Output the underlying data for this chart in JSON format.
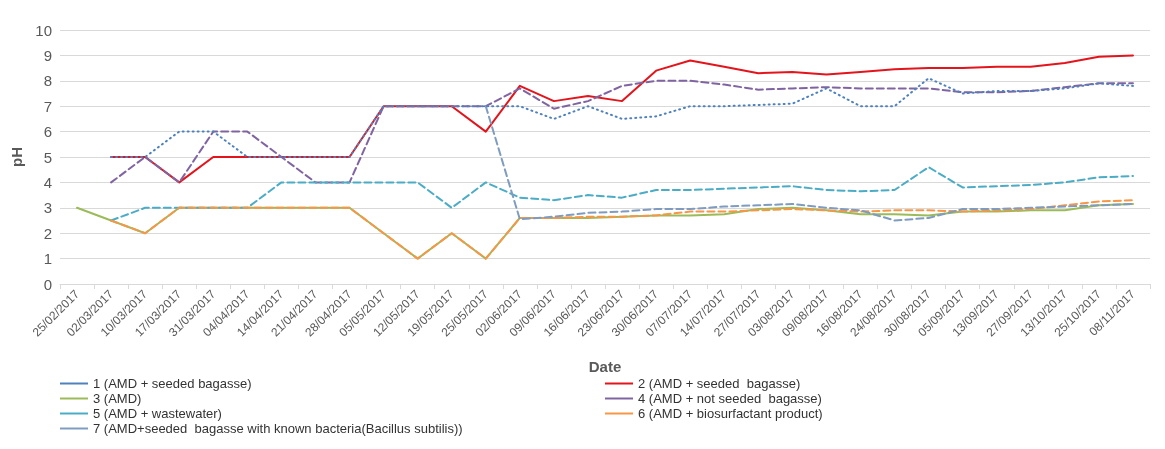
{
  "chart_data": {
    "type": "line",
    "xlabel": "Date",
    "ylabel": "pH",
    "categories": [
      "25/02/2017",
      "02/03/2017",
      "10/03/2017",
      "17/03/2017",
      "31/03/2017",
      "04/04/2017",
      "14/04/2017",
      "21/04/2017",
      "28/04/2017",
      "05/05/2017",
      "12/05/2017",
      "19/05/2017",
      "25/05/2017",
      "02/06/2017",
      "09/06/2017",
      "16/06/2017",
      "23/06/2017",
      "30/06/2017",
      "07/07/2017",
      "14/07/2017",
      "27/07/2017",
      "03/08/2017",
      "09/08/2017",
      "16/08/2017",
      "24/08/2017",
      "30/08/2017",
      "05/09/2017",
      "13/09/2017",
      "27/09/2017",
      "13/10/2017",
      "25/10/2017",
      "08/11/2017"
    ],
    "series": [
      {
        "name": "1 (AMD + seeded bagasse)",
        "color": "#4f81bd",
        "line_style": "dotted",
        "values": [
          null,
          5,
          5,
          6,
          6,
          5,
          5,
          5,
          5,
          7,
          7,
          7,
          7,
          7,
          6.5,
          7,
          6.5,
          6.6,
          7,
          7,
          7.05,
          7.1,
          7.7,
          7,
          7,
          8.1,
          7.5,
          7.6,
          7.6,
          7.7,
          7.9,
          7.8
        ]
      },
      {
        "name": "2 (AMD + seeded  bagasse)",
        "color": "#e3141b",
        "line_style": "solid",
        "values": [
          null,
          5,
          5,
          4,
          5,
          5,
          5,
          5,
          5,
          7,
          7,
          7,
          6,
          7.8,
          7.2,
          7.4,
          7.2,
          8.4,
          8.8,
          8.55,
          8.3,
          8.35,
          8.25,
          8.35,
          8.45,
          8.5,
          8.5,
          8.55,
          8.55,
          8.7,
          8.95,
          9
        ]
      },
      {
        "name": "3 (AMD)",
        "color": "#9bbb59",
        "line_style": "solid",
        "values": [
          3,
          2.5,
          2,
          3,
          3,
          3,
          3,
          3,
          3,
          2,
          1,
          2,
          1,
          2.6,
          2.6,
          2.6,
          2.65,
          2.7,
          2.7,
          2.75,
          2.95,
          3,
          2.9,
          2.75,
          2.75,
          2.7,
          2.85,
          2.85,
          2.9,
          2.9,
          3.1,
          3.15
        ]
      },
      {
        "name": "4 (AMD + not seeded  bagasse)",
        "color": "#8064a2",
        "line_style": "dashed",
        "values": [
          null,
          4,
          5,
          4,
          6,
          6,
          5,
          4,
          4,
          7,
          7,
          7,
          7,
          7.7,
          6.9,
          7.2,
          7.8,
          8,
          8,
          7.85,
          7.65,
          7.7,
          7.75,
          7.7,
          7.7,
          7.7,
          7.55,
          7.55,
          7.6,
          7.75,
          7.9,
          7.9
        ]
      },
      {
        "name": "5 (AMD + wastewater)",
        "color": "#4bacc6",
        "line_style": "dashed",
        "values": [
          null,
          2.5,
          3,
          3,
          3,
          3,
          4,
          4,
          4,
          4,
          4,
          3,
          4,
          3.4,
          3.3,
          3.5,
          3.4,
          3.7,
          3.7,
          3.75,
          3.8,
          3.85,
          3.7,
          3.65,
          3.7,
          4.6,
          3.8,
          3.85,
          3.9,
          4,
          4.2,
          4.25
        ]
      },
      {
        "name": "6 (AMD + biosurfactant product)",
        "color": "#f79646",
        "line_style": "dashed",
        "values": [
          null,
          2.5,
          2,
          3,
          3,
          3,
          3,
          3,
          3,
          2,
          1,
          2,
          1,
          2.6,
          2.6,
          2.65,
          2.65,
          2.7,
          2.85,
          2.85,
          2.9,
          2.95,
          2.9,
          2.85,
          2.9,
          2.9,
          2.85,
          2.9,
          2.95,
          3.1,
          3.25,
          3.3
        ]
      },
      {
        "name": "7 (AMD+seeded  bagasse with known bacteria(Bacillus subtilis))",
        "color": "#7f9cc0",
        "line_style": "dashed",
        "values": [
          null,
          null,
          null,
          null,
          null,
          null,
          null,
          null,
          null,
          null,
          null,
          null,
          7,
          2.55,
          2.65,
          2.8,
          2.85,
          2.95,
          2.95,
          3.05,
          3.1,
          3.15,
          3,
          2.9,
          2.5,
          2.6,
          2.95,
          2.95,
          3,
          3.05,
          3.1,
          3.15
        ]
      }
    ],
    "ylim": [
      0,
      10
    ],
    "yticks": [
      0,
      1,
      2,
      3,
      4,
      5,
      6,
      7,
      8,
      9,
      10
    ],
    "grid": "y",
    "legend": "bottom",
    "marker": "none"
  }
}
